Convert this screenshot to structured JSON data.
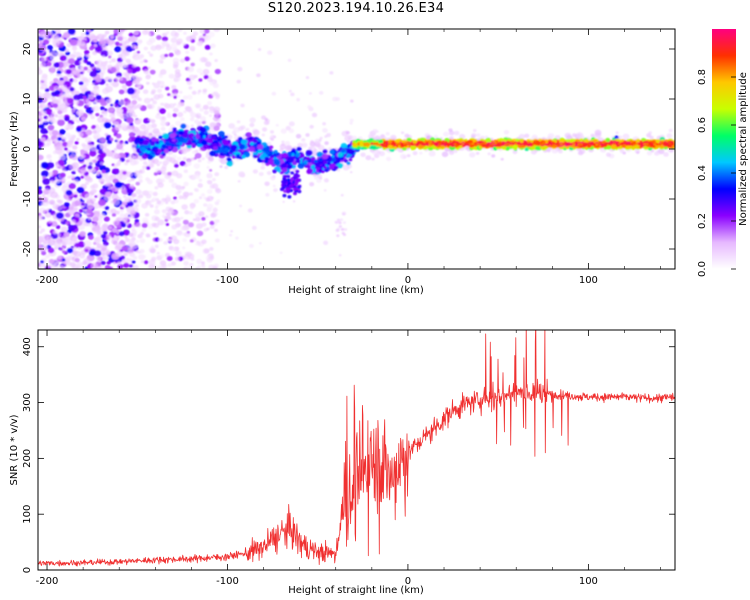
{
  "title": "S120.2023.194.10.26.E34",
  "chart_data": [
    {
      "type": "heatmap",
      "title": "S120.2023.194.10.26.E34",
      "xlabel": "Height of straight line (km)",
      "ylabel": "Frequency (Hz)",
      "xlim": [
        -205,
        148
      ],
      "ylim": [
        -24,
        24
      ],
      "xticks": [
        -200,
        -100,
        0,
        100
      ],
      "yticks": [
        -20,
        -10,
        0,
        10,
        20
      ],
      "colorbar": {
        "label": "Normalized spectral amplitude",
        "range": [
          0.0,
          1.0
        ],
        "ticks": [
          "0.0",
          "0.2",
          "0.4",
          "0.6",
          "0.8"
        ],
        "colormap": [
          "#ffffff",
          "#e6b8ff",
          "#8a00ff",
          "#0000ff",
          "#00c8ff",
          "#00ff66",
          "#c8ff00",
          "#ffc800",
          "#ff3000",
          "#ff0080"
        ]
      },
      "regions": [
        {
          "x_range": [
            -205,
            -150
          ],
          "freq_range": [
            -24,
            24
          ],
          "amplitude": "0.0-0.3",
          "pattern": "scattered speckle"
        },
        {
          "x_range": [
            -150,
            -100
          ],
          "freq_range": [
            -24,
            24
          ],
          "amplitude": "0.0-0.25",
          "pattern": "faint scattered speckle"
        },
        {
          "x_range": [
            -150,
            -100
          ],
          "freq_range": [
            -3,
            5
          ],
          "amplitude": "0.2-0.4",
          "pattern": "band"
        },
        {
          "x_range": [
            -100,
            -30
          ],
          "freq_range": [
            -9,
            5
          ],
          "amplitude": "0.2-0.5",
          "pattern": "wavy band"
        },
        {
          "x_range": [
            -30,
            148
          ],
          "freq_range": [
            -1,
            3
          ],
          "amplitude": "0.4-1.0",
          "pattern": "narrow band near 1 Hz"
        }
      ]
    },
    {
      "type": "line",
      "xlabel": "Height of straight line (km)",
      "ylabel": "SNR (10 * v/v)",
      "xlim": [
        -205,
        148
      ],
      "ylim": [
        0,
        430
      ],
      "xticks": [
        -200,
        -100,
        0,
        100
      ],
      "yticks": [
        0,
        100,
        200,
        300,
        400
      ],
      "color": "#f03030",
      "series": [
        {
          "x": [
            -205,
            -180,
            -160,
            -140,
            -120,
            -110,
            -100,
            -90,
            -80,
            -75,
            -70,
            -65,
            -60,
            -55,
            -50,
            -45,
            -40,
            -38,
            -35,
            -32,
            -30,
            -28,
            -25,
            -22,
            -20,
            -18,
            -15,
            -12,
            -10,
            -8,
            -5,
            0,
            5,
            10,
            15,
            20,
            25,
            30,
            40,
            50,
            55,
            60,
            65,
            70,
            80,
            90,
            100,
            110,
            120,
            130,
            140,
            148
          ],
          "y": [
            12,
            13,
            15,
            18,
            20,
            22,
            24,
            30,
            40,
            55,
            65,
            75,
            50,
            38,
            32,
            30,
            28,
            80,
            110,
            120,
            150,
            160,
            170,
            180,
            190,
            200,
            205,
            180,
            160,
            170,
            190,
            210,
            225,
            240,
            255,
            270,
            285,
            295,
            305,
            310,
            315,
            318,
            320,
            318,
            315,
            312,
            310,
            310,
            310,
            308,
            308,
            310
          ]
        }
      ]
    }
  ]
}
